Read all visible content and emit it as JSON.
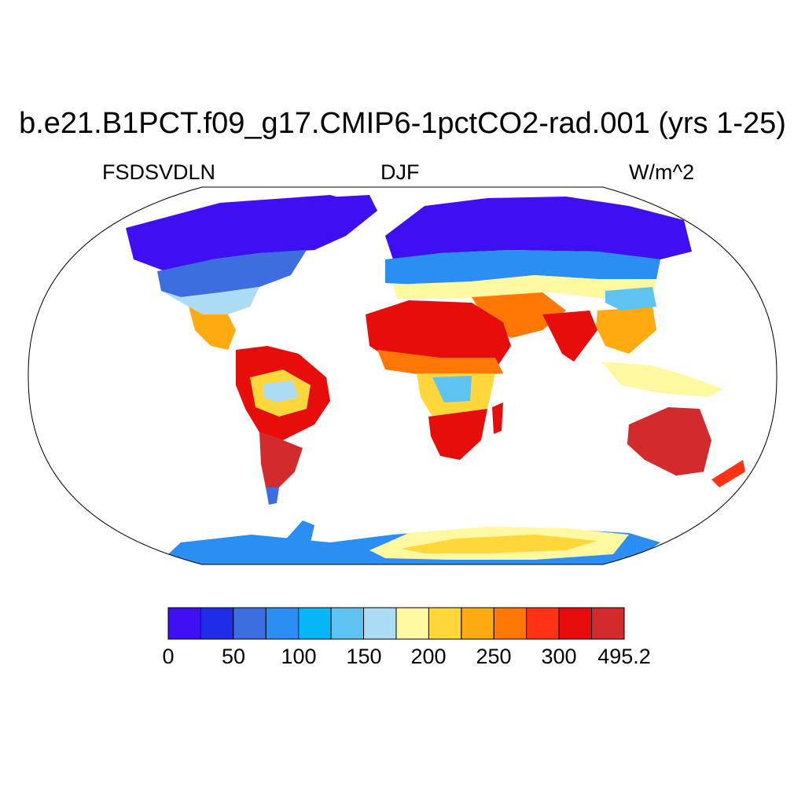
{
  "title": "b.e21.B1PCT.f09_g17.CMIP6-1pctCO2-rad.001 (yrs 1-25)",
  "left_string": "FSDSVDLN",
  "center_string": "DJF",
  "right_string": "W/m^2",
  "colorbar": {
    "colors": [
      "#3d0ff2",
      "#1f2ce8",
      "#3c6ee0",
      "#2a8ef5",
      "#07b6f7",
      "#5ec2f2",
      "#acdcf3",
      "#fff8a0",
      "#ffd73a",
      "#ffaa11",
      "#ff7806",
      "#ff3313",
      "#e60d0b",
      "#d32a2b"
    ],
    "labels": [
      "0",
      "50",
      "100",
      "150",
      "200",
      "250",
      "300",
      "495.2"
    ]
  },
  "map_colors": {
    "land_outline": "#000000",
    "ocean": "#ffffff"
  }
}
